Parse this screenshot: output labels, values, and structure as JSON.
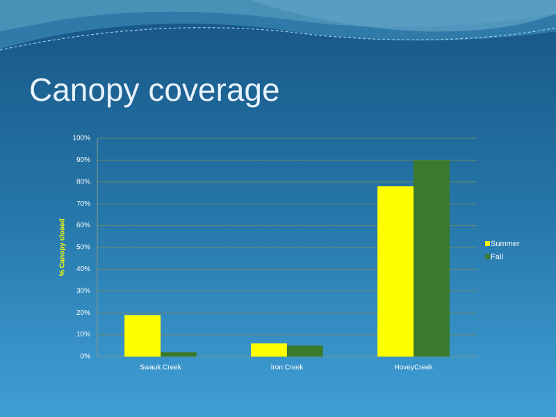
{
  "chart_data": {
    "type": "bar",
    "title": "Canopy coverage",
    "y_label": "% Canopy closed",
    "categories": [
      "Swauk Creek",
      "Iron Creek",
      "HoveyCreek"
    ],
    "series": [
      {
        "name": "Summer",
        "color": "#ffff00",
        "values": [
          19,
          6,
          78
        ]
      },
      {
        "name": "Fall",
        "color": "#3b7a2c",
        "values": [
          2,
          5,
          90
        ]
      }
    ],
    "ylim": [
      0,
      100
    ],
    "yticks": [
      {
        "value": 0,
        "label": "0%"
      },
      {
        "value": 10,
        "label": "10%"
      },
      {
        "value": 20,
        "label": "20%"
      },
      {
        "value": 30,
        "label": "30%"
      },
      {
        "value": 40,
        "label": "40%"
      },
      {
        "value": 50,
        "label": "50%"
      },
      {
        "value": 60,
        "label": "60%"
      },
      {
        "value": 70,
        "label": "70%"
      },
      {
        "value": 80,
        "label": "80%"
      },
      {
        "value": 90,
        "label": "90%"
      },
      {
        "value": 100,
        "label": "100%"
      }
    ],
    "grid": true,
    "legend": "right"
  }
}
